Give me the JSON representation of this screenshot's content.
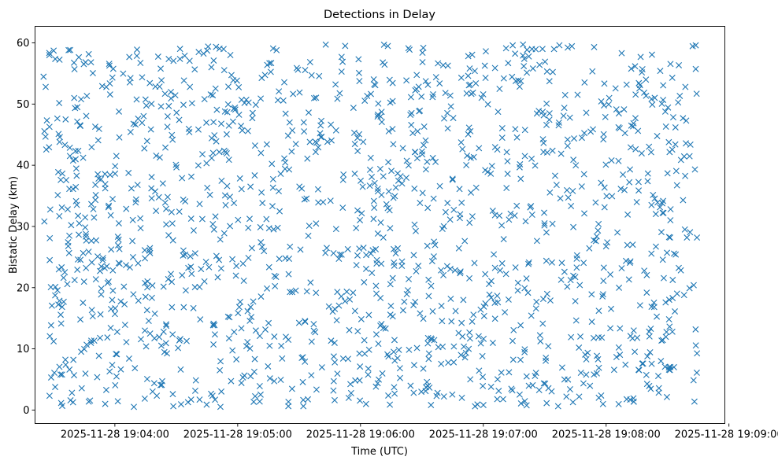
{
  "chart_data": {
    "type": "scatter",
    "title": "Detections in Delay",
    "xlabel": "Time (UTC)",
    "ylabel": "Bistatic Delay (km)",
    "x_reference": "2025-11-28 19:04:00",
    "x_units": "seconds after x_reference",
    "xlim": [
      -39,
      298
    ],
    "ylim": [
      -2.2,
      62.7
    ],
    "x_ticks": [
      {
        "value": 0,
        "label": "2025-11-28 19:04:00"
      },
      {
        "value": 60,
        "label": "2025-11-28 19:05:00"
      },
      {
        "value": 120,
        "label": "2025-11-28 19:06:00"
      },
      {
        "value": 180,
        "label": "2025-11-28 19:07:00"
      },
      {
        "value": 240,
        "label": "2025-11-28 19:08:00"
      },
      {
        "value": 300,
        "label": "2025-11-28 19:09:00"
      }
    ],
    "y_ticks": [
      {
        "value": 0,
        "label": "0"
      },
      {
        "value": 10,
        "label": "10"
      },
      {
        "value": 20,
        "label": "20"
      },
      {
        "value": 30,
        "label": "30"
      },
      {
        "value": 40,
        "label": "40"
      },
      {
        "value": 50,
        "label": "50"
      },
      {
        "value": 60,
        "label": "60"
      }
    ],
    "marker": "x",
    "series_color": "#1f77b4",
    "point_x_range": [
      -35,
      285
    ],
    "point_y_range": [
      0.5,
      59.8
    ],
    "sample_points": {
      "note": "representative sample reproducing the distribution; individual markers are too numerous and unlabeled to read exactly",
      "count": 1500,
      "seed": 20251128
    }
  }
}
